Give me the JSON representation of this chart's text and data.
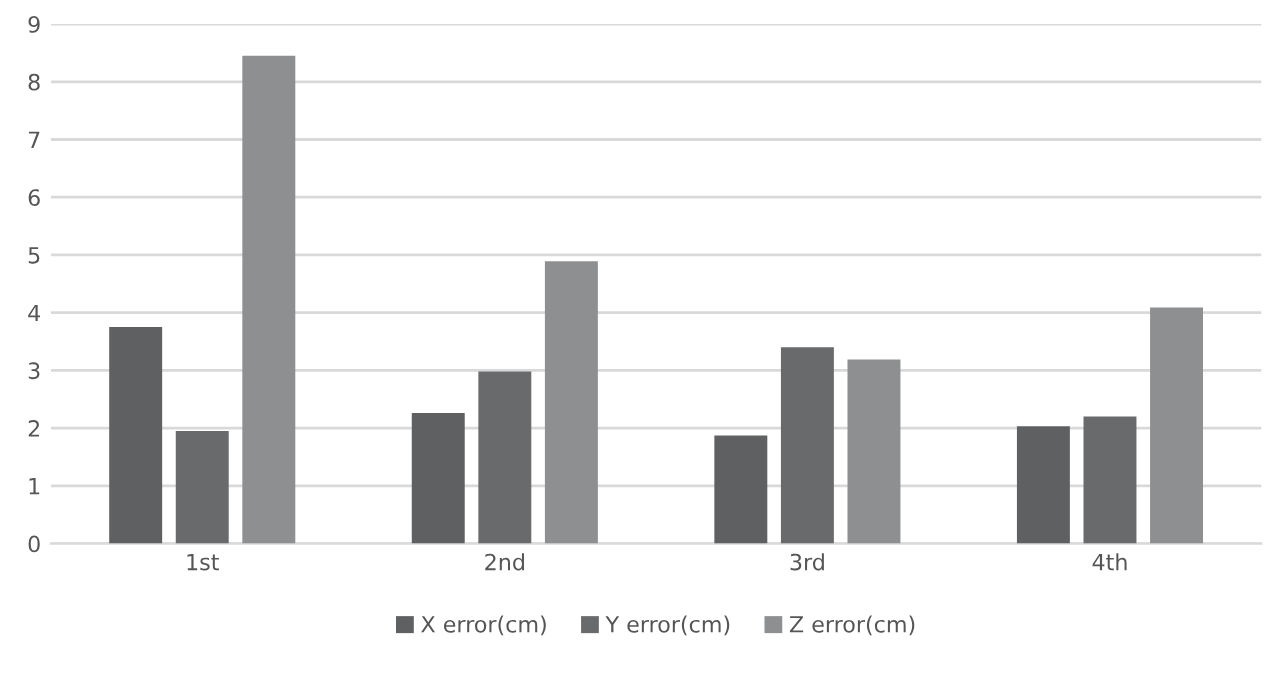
{
  "chart_data": {
    "type": "bar",
    "categories": [
      "1st",
      "2nd",
      "3rd",
      "4th"
    ],
    "series": [
      {
        "name": "X error(cm)",
        "color": "#5f6062",
        "values": [
          3.75,
          2.26,
          1.87,
          2.03
        ]
      },
      {
        "name": "Y error(cm)",
        "color": "#696a6c",
        "values": [
          1.95,
          2.98,
          3.4,
          2.2
        ]
      },
      {
        "name": "Z error(cm)",
        "color": "#8e8f91",
        "values": [
          8.45,
          4.89,
          3.19,
          4.09
        ]
      }
    ],
    "ylim": [
      0,
      9
    ],
    "yticks": [
      0,
      1,
      2,
      3,
      4,
      5,
      6,
      7,
      8,
      9
    ],
    "grid": "y",
    "legend": "bottom"
  }
}
